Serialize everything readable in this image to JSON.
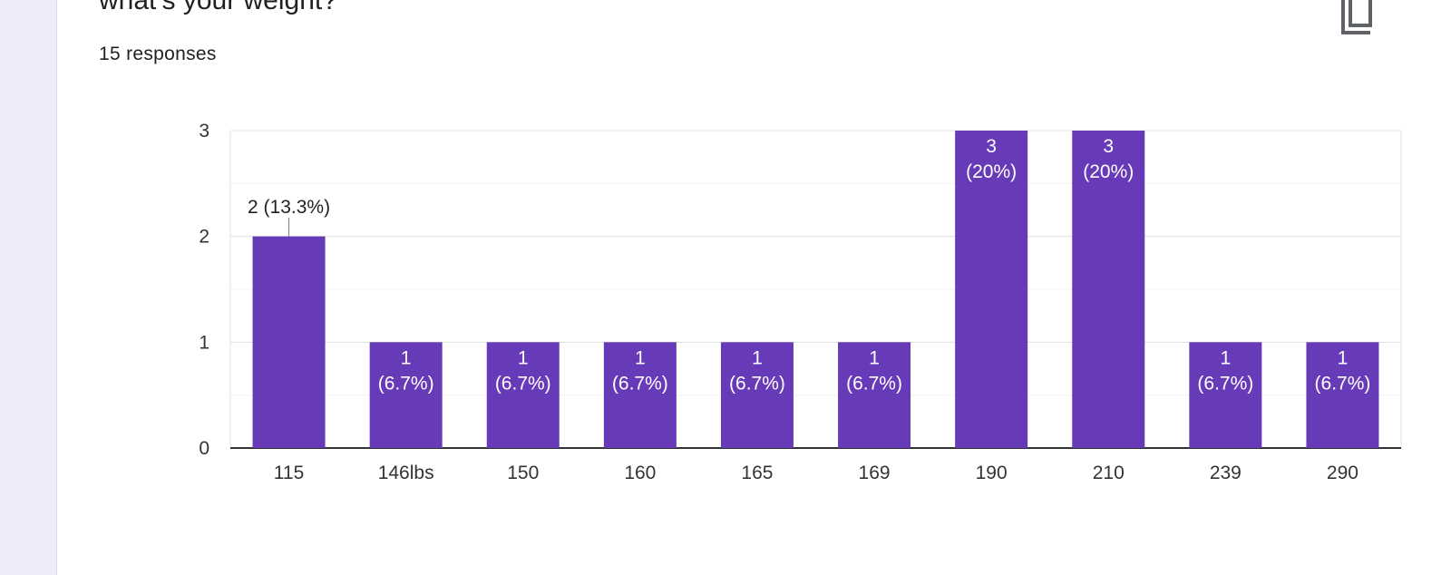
{
  "question": {
    "title": "what’s your weight?",
    "response_count": "15 responses"
  },
  "icons": {
    "copy": "copy-icon"
  },
  "colors": {
    "bar": "#673ab7",
    "background": "#f0ebf8",
    "card": "#ffffff",
    "grid": "#e0e0e0",
    "axis": "#333333"
  },
  "chart_data": {
    "type": "bar",
    "categories": [
      "115",
      "146lbs",
      "150",
      "160",
      "165",
      "169",
      "190",
      "210",
      "239",
      "290"
    ],
    "values": [
      2,
      1,
      1,
      1,
      1,
      1,
      3,
      3,
      1,
      1
    ],
    "percents": [
      "13.3%",
      "6.7%",
      "6.7%",
      "6.7%",
      "6.7%",
      "6.7%",
      "20%",
      "20%",
      "6.7%",
      "6.7%"
    ],
    "ylim": [
      0,
      3
    ],
    "yticks": [
      0,
      1,
      2,
      3
    ],
    "title": "",
    "xlabel": "",
    "ylabel": "",
    "grid": true,
    "legend": "none"
  }
}
